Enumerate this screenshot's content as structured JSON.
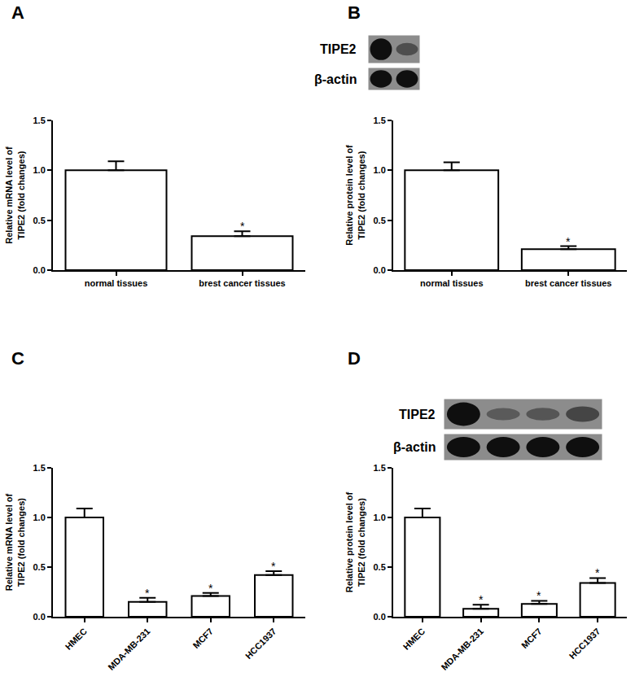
{
  "chart_data": [
    {
      "type": "bar",
      "title": "A",
      "categories": [
        "normal tissues",
        "brest cancer tissues"
      ],
      "values": [
        1.0,
        0.34
      ],
      "errors": [
        0.09,
        0.05
      ],
      "ylabel": "Relative mRNA level of\nTIPE2 (fold changes)",
      "ylim": [
        0,
        1.5
      ],
      "yticks": [
        {
          "value": 0,
          "label": "0.0"
        },
        {
          "value": 0.5,
          "label": "0.5"
        },
        {
          "value": 1.0,
          "label": "1.0"
        },
        {
          "value": 1.5,
          "label": "1.5"
        }
      ],
      "color": "#ffffff",
      "grid": false,
      "annotations": [
        {
          "x": "brest cancer tissues",
          "text": "*"
        }
      ]
    },
    {
      "type": "bar",
      "title": "B",
      "categories": [
        "normal tissues",
        "brest cancer tissues"
      ],
      "values": [
        1.0,
        0.21
      ],
      "errors": [
        0.08,
        0.03
      ],
      "ylabel": "Relative protein level of\nTIPE2 (fold changes)",
      "ylim": [
        0,
        1.5
      ],
      "yticks": [
        {
          "value": 0,
          "label": "0.0"
        },
        {
          "value": 0.5,
          "label": "0.5"
        },
        {
          "value": 1.0,
          "label": "1.0"
        },
        {
          "value": 1.5,
          "label": "1.5"
        }
      ],
      "color": "#ffffff",
      "grid": false,
      "blot": {
        "labels": [
          "TIPE2",
          "β-actin"
        ]
      },
      "annotations": [
        {
          "x": "brest cancer tissues",
          "text": "*"
        }
      ]
    },
    {
      "type": "bar",
      "title": "C",
      "categories": [
        "HMEC",
        "MDA-MB-231",
        "MCF7",
        "HCC1937"
      ],
      "values": [
        1.0,
        0.15,
        0.21,
        0.42
      ],
      "errors": [
        0.09,
        0.04,
        0.03,
        0.04
      ],
      "ylabel": "Relative mRNA level of\nTIPE2 (fold changes)",
      "ylim": [
        0,
        1.5
      ],
      "yticks": [
        {
          "value": 0,
          "label": "0.0"
        },
        {
          "value": 0.5,
          "label": "0.5"
        },
        {
          "value": 1.0,
          "label": "1.0"
        },
        {
          "value": 1.5,
          "label": "1.5"
        }
      ],
      "color": "#ffffff",
      "grid": false,
      "annotations": [
        {
          "x": "MDA-MB-231",
          "text": "*"
        },
        {
          "x": "MCF7",
          "text": "*"
        },
        {
          "x": "HCC1937",
          "text": "*"
        }
      ]
    },
    {
      "type": "bar",
      "title": "D",
      "categories": [
        "HMEC",
        "MDA-MB-231",
        "MCF7",
        "HCC1937"
      ],
      "values": [
        1.0,
        0.08,
        0.13,
        0.34
      ],
      "errors": [
        0.09,
        0.04,
        0.03,
        0.05
      ],
      "ylabel": "Relative protein level of\nTIPE2 (fold changes)",
      "ylim": [
        0,
        1.5
      ],
      "yticks": [
        {
          "value": 0,
          "label": "0.0"
        },
        {
          "value": 0.5,
          "label": "0.5"
        },
        {
          "value": 1.0,
          "label": "1.0"
        },
        {
          "value": 1.5,
          "label": "1.5"
        }
      ],
      "color": "#ffffff",
      "grid": false,
      "blot": {
        "labels": [
          "TIPE2",
          "β-actin"
        ]
      },
      "annotations": [
        {
          "x": "MDA-MB-231",
          "text": "*"
        },
        {
          "x": "MCF7",
          "text": "*"
        },
        {
          "x": "HCC1937",
          "text": "*"
        }
      ]
    }
  ]
}
